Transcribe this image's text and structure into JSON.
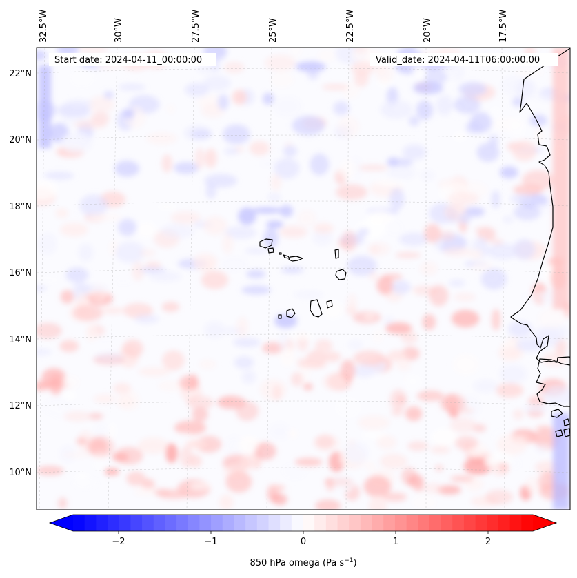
{
  "map": {
    "start_date_label": "Start date: 2024-04-11_00:00:00",
    "valid_date_label": "Valid_date: 2024-04-11T06:00:00.00",
    "lon_labels": [
      "32.5°W",
      "30°W",
      "27.5°W",
      "25°W",
      "22.5°W",
      "20°W",
      "17.5°W"
    ],
    "lat_labels": [
      "22°N",
      "20°N",
      "18°N",
      "16°N",
      "14°N",
      "12°N",
      "10°N"
    ],
    "variable": "850 hPa omega",
    "units": "Pa s",
    "units_exponent": "−1"
  },
  "colorbar": {
    "tick_labels": [
      "−2",
      "−1",
      "0",
      "1",
      "2"
    ],
    "colormap": "bwr",
    "color_min": "#0000ff",
    "color_mid": "#ffffff",
    "color_max": "#ff0000",
    "extend": "both"
  },
  "colors": {
    "coastline": "#000000",
    "gridline": "#b0b0b0",
    "field_background": "#fbfbff"
  }
}
